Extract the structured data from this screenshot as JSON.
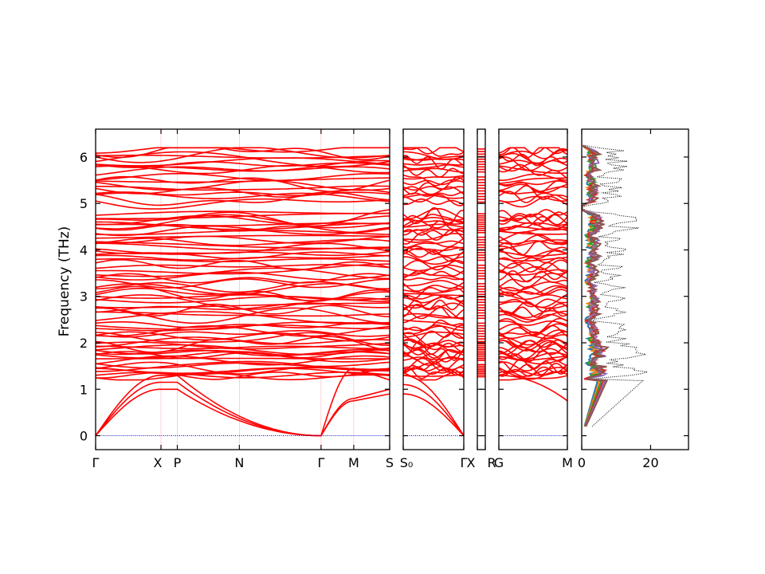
{
  "colors": {
    "band": "#ff0000",
    "zero_line": "#0000cc",
    "dos_total": "#000000",
    "pdos": [
      "#1f77b4",
      "#ff7f0e",
      "#2ca02c",
      "#d62728",
      "#9467bd",
      "#8c564b"
    ]
  },
  "chart_data": [
    {
      "type": "line",
      "name": "phonon-band-structure",
      "ylabel": "Frequency (THz)",
      "ylim": [
        -0.3,
        6.6
      ],
      "yticks": [
        0,
        1,
        2,
        3,
        4,
        5,
        6
      ],
      "grid": false,
      "segments": [
        {
          "labels": [
            "Γ",
            "X",
            "P",
            "N",
            "Γ",
            "M",
            "S"
          ],
          "x": [
            0,
            1.0,
            1.25,
            2.2,
            3.45,
            3.95,
            4.5
          ]
        },
        {
          "labels": [
            "S₀",
            "Γ"
          ],
          "x": [
            0,
            1
          ]
        },
        {
          "labels": [
            "X",
            "R"
          ],
          "x": [
            0,
            1
          ]
        },
        {
          "labels": [
            "G",
            "M"
          ],
          "x": [
            0,
            1
          ]
        }
      ],
      "x_tick_labels": [
        "Γ",
        "X",
        "P",
        "N",
        "Γ",
        "M",
        "S",
        "S₀",
        "Γ",
        "X",
        "R",
        "G",
        "M"
      ],
      "acoustic_max_freq": 1.3,
      "band_top_freq": 6.2
    },
    {
      "type": "line",
      "name": "phonon-dos",
      "xticks": [
        0,
        20
      ],
      "xlim": [
        0,
        31
      ],
      "ylim": [
        -0.3,
        6.6
      ],
      "series": [
        {
          "style": "dotted",
          "color": "#000000"
        },
        {
          "color": "#1f77b4"
        },
        {
          "color": "#ff7f0e"
        },
        {
          "color": "#2ca02c"
        },
        {
          "color": "#d62728"
        },
        {
          "color": "#9467bd"
        },
        {
          "color": "#8c564b"
        }
      ]
    }
  ]
}
